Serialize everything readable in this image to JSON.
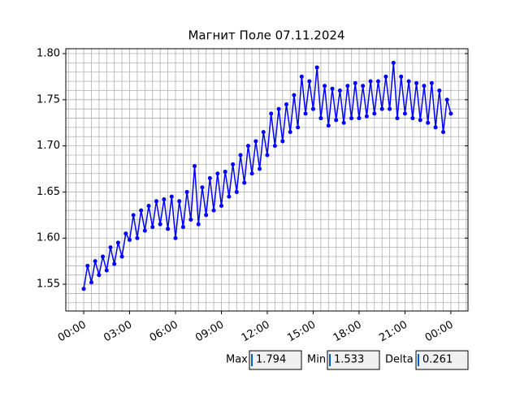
{
  "chart_data": {
    "type": "line",
    "title": "Магнит Поле 07.11.2024",
    "x": [
      0,
      0.25,
      0.5,
      0.75,
      1,
      1.25,
      1.5,
      1.75,
      2,
      2.25,
      2.5,
      2.75,
      3,
      3.25,
      3.5,
      3.75,
      4,
      4.25,
      4.5,
      4.75,
      5,
      5.25,
      5.5,
      5.75,
      6,
      6.25,
      6.5,
      6.75,
      7,
      7.25,
      7.5,
      7.75,
      8,
      8.25,
      8.5,
      8.75,
      9,
      9.25,
      9.5,
      9.75,
      10,
      10.25,
      10.5,
      10.75,
      11,
      11.25,
      11.5,
      11.75,
      12,
      12.25,
      12.5,
      12.75,
      13,
      13.25,
      13.5,
      13.75,
      14,
      14.25,
      14.5,
      14.75,
      15,
      15.25,
      15.5,
      15.75,
      16,
      16.25,
      16.5,
      16.75,
      17,
      17.25,
      17.5,
      17.75,
      18,
      18.25,
      18.5,
      18.75,
      19,
      19.25,
      19.5,
      19.75,
      20,
      20.25,
      20.5,
      20.75,
      21,
      21.25,
      21.5,
      21.75,
      22,
      22.25,
      22.5,
      22.75,
      23,
      23.25,
      23.5,
      23.75,
      24
    ],
    "series": [
      {
        "color": "#0000ff",
        "values": [
          1.545,
          1.57,
          1.552,
          1.575,
          1.56,
          1.58,
          1.565,
          1.59,
          1.572,
          1.595,
          1.58,
          1.605,
          1.598,
          1.625,
          1.6,
          1.63,
          1.608,
          1.635,
          1.612,
          1.64,
          1.615,
          1.642,
          1.61,
          1.645,
          1.6,
          1.64,
          1.612,
          1.65,
          1.62,
          1.678,
          1.615,
          1.655,
          1.625,
          1.665,
          1.63,
          1.67,
          1.635,
          1.672,
          1.645,
          1.68,
          1.65,
          1.69,
          1.66,
          1.7,
          1.67,
          1.705,
          1.675,
          1.715,
          1.69,
          1.735,
          1.7,
          1.74,
          1.705,
          1.745,
          1.715,
          1.755,
          1.72,
          1.775,
          1.735,
          1.77,
          1.74,
          1.785,
          1.73,
          1.765,
          1.722,
          1.762,
          1.728,
          1.76,
          1.725,
          1.765,
          1.73,
          1.768,
          1.73,
          1.765,
          1.732,
          1.77,
          1.735,
          1.77,
          1.74,
          1.775,
          1.74,
          1.79,
          1.73,
          1.775,
          1.735,
          1.77,
          1.73,
          1.768,
          1.728,
          1.765,
          1.725,
          1.768,
          1.72,
          1.76,
          1.715,
          1.75,
          1.735
        ]
      }
    ],
    "xlim": [
      -1.17,
      25.12
    ],
    "xticks": [
      {
        "value": 0,
        "label": "00:00"
      },
      {
        "value": 3,
        "label": "03:00"
      },
      {
        "value": 6,
        "label": "06:00"
      },
      {
        "value": 9,
        "label": "09:00"
      },
      {
        "value": 12,
        "label": "12:00"
      },
      {
        "value": 15,
        "label": "15:00"
      },
      {
        "value": 18,
        "label": "18:00"
      },
      {
        "value": 21,
        "label": "21:00"
      },
      {
        "value": 24,
        "label": "00:00"
      }
    ],
    "ylim": [
      1.521,
      1.8053
    ],
    "yticks": [
      1.55,
      {
        "value": 1.6,
        "label": "1.60"
      },
      1.65,
      {
        "value": 1.7,
        "label": "1.70"
      },
      1.75,
      {
        "value": 1.8,
        "label": "1.80"
      }
    ],
    "grid": true,
    "x_minor_step": 0.5,
    "y_minor_step": 0.01,
    "stats": [
      {
        "label": "Max",
        "value": 1.794
      },
      {
        "label": "Min",
        "value": 1.533
      },
      {
        "label": "Delta",
        "value": 0.261
      }
    ]
  }
}
